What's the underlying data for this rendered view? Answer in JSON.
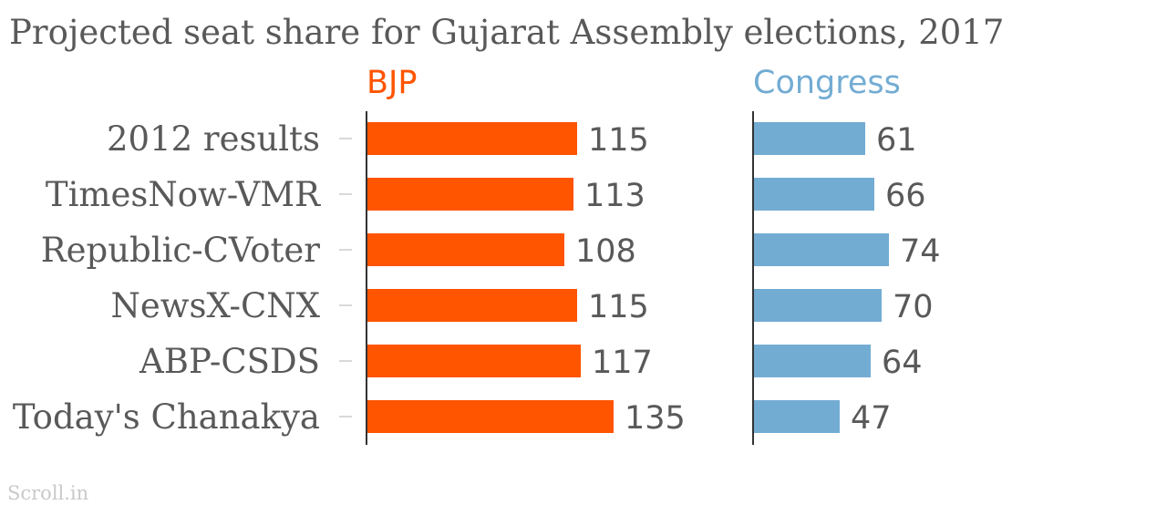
{
  "chart_data": {
    "type": "bar",
    "orientation": "horizontal",
    "layout": "small-multiples",
    "title": "Projected seat share for Gujarat Assembly elections, 2017",
    "categories": [
      "2012 results",
      "TimesNow-VMR",
      "Republic-CVoter",
      "NewsX-CNX",
      "ABP-CSDS",
      "Today's Chanakya"
    ],
    "series": [
      {
        "name": "BJP",
        "color": "#ff5400",
        "values": [
          115,
          113,
          108,
          115,
          117,
          135
        ]
      },
      {
        "name": "Congress",
        "color": "#73acd3",
        "values": [
          61,
          66,
          74,
          70,
          64,
          47
        ]
      }
    ],
    "grid": false,
    "legend": "top",
    "credit": "Scroll.in"
  }
}
